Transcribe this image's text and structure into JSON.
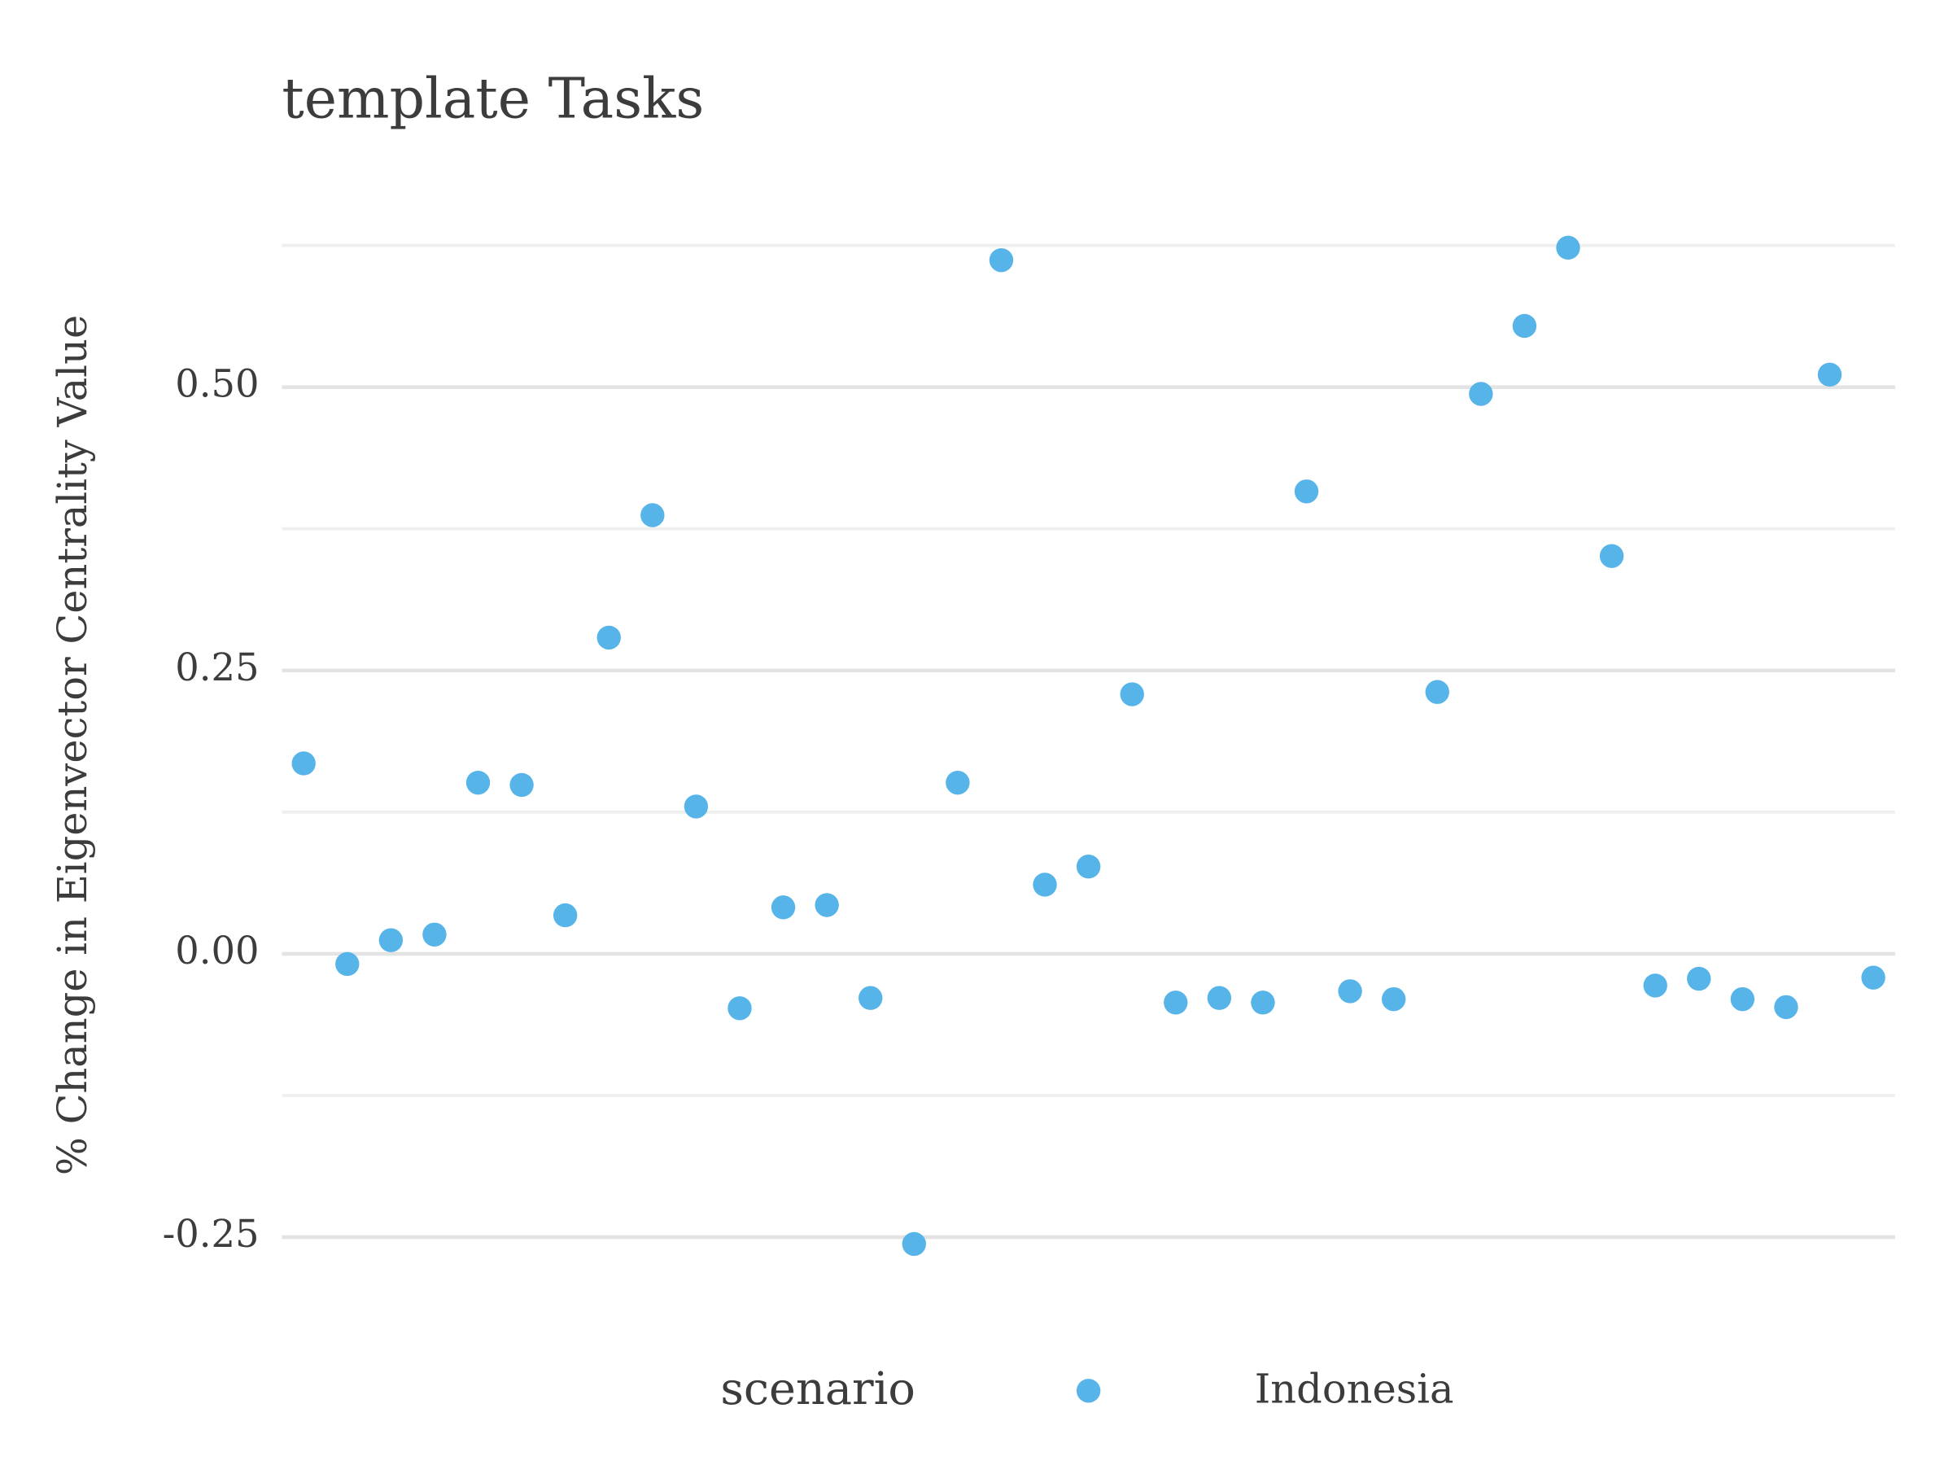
{
  "chart_data": {
    "type": "scatter",
    "title": "template Tasks",
    "y_label": "% Change in Eigenvector Centrality Value",
    "legend_title": "scenario",
    "legend_position": "bottom",
    "grid": true,
    "ylim": [
      -0.29,
      0.655
    ],
    "yticks": [
      -0.25,
      {
        "value": 0,
        "label": "0.00"
      },
      0.25,
      {
        "value": 0.5,
        "label": "0.50"
      }
    ],
    "minor_grid": [
      -0.125,
      0.125,
      0.375,
      0.625
    ],
    "series": [
      {
        "name": "Indonesia",
        "color": "#56b4e9",
        "values": [
          0.168,
          -0.009,
          0.012,
          0.017,
          0.151,
          0.149,
          0.034,
          0.279,
          0.387,
          0.13,
          -0.048,
          0.041,
          0.043,
          -0.039,
          -0.256,
          0.151,
          0.612,
          0.061,
          0.077,
          0.229,
          -0.043,
          -0.039,
          -0.043,
          0.408,
          -0.033,
          -0.04,
          0.231,
          0.494,
          0.554,
          0.623,
          0.351,
          -0.028,
          -0.022,
          -0.04,
          -0.047,
          0.511,
          -0.021
        ]
      }
    ]
  }
}
